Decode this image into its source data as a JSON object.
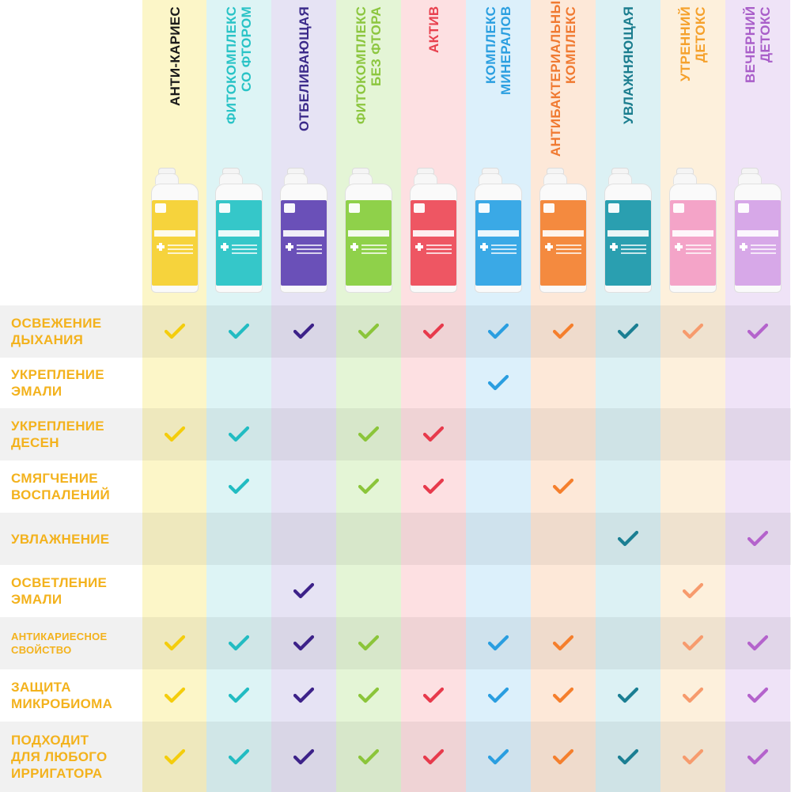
{
  "products": [
    {
      "name": "АНТИ-КАРИЕС",
      "text_color": "#1a1a1a",
      "bg": "#fcf6c8",
      "check_color": "#f4cd0c",
      "label_color": "#f6d33c"
    },
    {
      "name": "ФИТОКОМПЛЕКС\nСО ФТОРОМ",
      "text_color": "#29c3c6",
      "bg": "#ddf4f5",
      "check_color": "#22bcc2",
      "label_color": "#35c7c9"
    },
    {
      "name": "ОТБЕЛИВАЮЩАЯ",
      "text_color": "#3b2a8a",
      "bg": "#e6e3f4",
      "check_color": "#3d2289",
      "label_color": "#6a50b8"
    },
    {
      "name": "ФИТОКОМПЛЕКС\nБЕЗ ФТОРА",
      "text_color": "#8cc63f",
      "bg": "#e4f5d6",
      "check_color": "#8bc53a",
      "label_color": "#8fd14a"
    },
    {
      "name": "АКТИВ",
      "text_color": "#e8414f",
      "bg": "#fde0e2",
      "check_color": "#e73a4c",
      "label_color": "#ee5663"
    },
    {
      "name": "КОМПЛЕКС\nМИНЕРАЛОВ",
      "text_color": "#2b9fe0",
      "bg": "#dcf0fb",
      "check_color": "#2a9ee0",
      "label_color": "#3aa9e6"
    },
    {
      "name": "АНТИБАКТЕРИАЛЬНЫЙ\nКОМПЛЕКС",
      "text_color": "#f07a32",
      "bg": "#fde8d8",
      "check_color": "#f57f2d",
      "label_color": "#f48a3f"
    },
    {
      "name": "УВЛАЖНЯЮЩАЯ",
      "text_color": "#1a7d8e",
      "bg": "#dcf1f4",
      "check_color": "#1b7f93",
      "label_color": "#2a9fb0"
    },
    {
      "name": "УТРЕННИЙ\nДЕТОКС",
      "text_color": "#f5a12c",
      "bg": "#fdf0dc",
      "check_color": "#f79b6d",
      "label_color": "#f4a4c8"
    },
    {
      "name": "ВЕЧЕРНИЙ\nДЕТОКС",
      "text_color": "#a95ec9",
      "bg": "#efe3f7",
      "check_color": "#b463cc",
      "label_color": "#d7a8e8"
    }
  ],
  "features": [
    {
      "label": "ОСВЕЖЕНИЕ\nДЫХАНИЯ",
      "checks": [
        1,
        1,
        1,
        1,
        1,
        1,
        1,
        1,
        1,
        1
      ]
    },
    {
      "label": "УКРЕПЛЕНИЕ\nЭМАЛИ",
      "checks": [
        0,
        0,
        0,
        0,
        0,
        1,
        0,
        0,
        0,
        0
      ]
    },
    {
      "label": "УКРЕПЛЕНИЕ\nДЕСЕН",
      "checks": [
        1,
        1,
        0,
        1,
        1,
        0,
        0,
        0,
        0,
        0
      ]
    },
    {
      "label": "СМЯГЧЕНИЕ\nВОСПАЛЕНИЙ",
      "checks": [
        0,
        1,
        0,
        1,
        1,
        0,
        1,
        0,
        0,
        0
      ]
    },
    {
      "label": "УВЛАЖНЕНИЕ",
      "checks": [
        0,
        0,
        0,
        0,
        0,
        0,
        0,
        1,
        0,
        1
      ]
    },
    {
      "label": "ОСВЕТЛЕНИЕ\nЭМАЛИ",
      "checks": [
        0,
        0,
        1,
        0,
        0,
        0,
        0,
        0,
        1,
        0
      ]
    },
    {
      "label": "АНТИКАРИЕСНОЕ\nСВОЙСТВО",
      "small": true,
      "checks": [
        1,
        1,
        1,
        1,
        0,
        1,
        1,
        0,
        1,
        1
      ]
    },
    {
      "label": "ЗАЩИТА\nМИКРОБИОМА",
      "checks": [
        1,
        1,
        1,
        1,
        1,
        1,
        1,
        1,
        1,
        1
      ]
    },
    {
      "label": "ПОДХОДИТ\nДЛЯ ЛЮБОГО\nИРРИГАТОРА",
      "checks": [
        1,
        1,
        1,
        1,
        1,
        1,
        1,
        1,
        1,
        1
      ]
    }
  ]
}
